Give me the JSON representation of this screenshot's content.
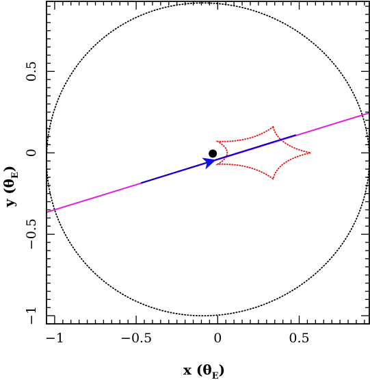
{
  "chart_data": {
    "type": "line",
    "title": "",
    "xlabel": {
      "main": "x (θ",
      "sub": "E",
      "close": ")"
    },
    "ylabel": {
      "main": "y (θ",
      "sub": "E",
      "close": ")"
    },
    "xlim": [
      -1.05,
      0.93
    ],
    "ylim": [
      -1.05,
      0.93
    ],
    "x_ticks": [
      -1,
      -0.5,
      0,
      0.5
    ],
    "y_ticks": [
      -1,
      -0.5,
      0,
      0.5
    ],
    "x_tick_labels": [
      "−1",
      "−0.5",
      "0",
      "0.5"
    ],
    "y_tick_labels": [
      "−1",
      "−0.5",
      "0",
      "0.5"
    ],
    "grid": false,
    "critical_curve": {
      "color": "#000000",
      "style": "dotted"
    },
    "caustic": {
      "color": "#dd1111",
      "cusps": [
        [
          0.34,
          0.16
        ],
        [
          0.57,
          0.0
        ],
        [
          0.34,
          -0.16
        ],
        [
          0.0,
          -0.07
        ],
        [
          0.0,
          0.07
        ]
      ]
    },
    "source_trajectory": {
      "color": "#e020e0",
      "start": [
        -1.05,
        -0.365
      ],
      "end": [
        0.93,
        0.245
      ]
    },
    "observed_segment": {
      "color": "#0000cc",
      "start": [
        -0.47,
        -0.185
      ],
      "end": [
        0.48,
        0.11
      ]
    },
    "arrow": {
      "x": -0.05,
      "y": -0.055,
      "color": "#1010ee"
    },
    "lens_point": {
      "x": -0.03,
      "y": -0.005,
      "color": "#000000"
    }
  }
}
